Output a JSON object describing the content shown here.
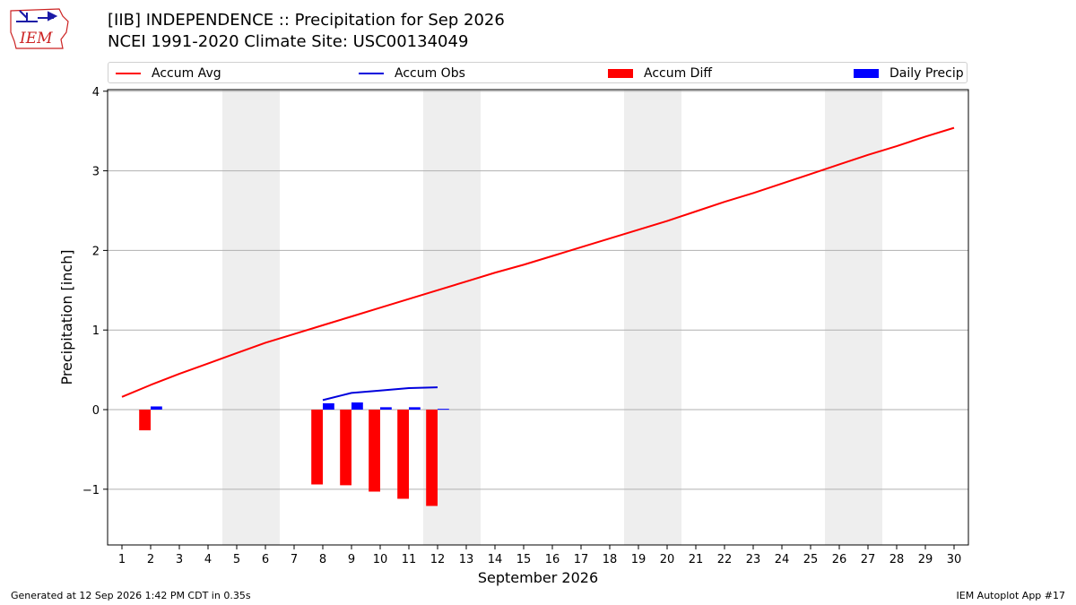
{
  "logo": {
    "text": "IEM",
    "colors": {
      "primary": "#cc2222",
      "icon": "#1a1aa6"
    }
  },
  "title_line1": "[IIB] INDEPENDENCE :: Precipitation for Sep 2026",
  "title_line2": "NCEI 1991-2020 Climate Site: USC00134049",
  "legend": [
    {
      "label": "Accum Avg",
      "kind": "line",
      "color": "#ff0000"
    },
    {
      "label": "Accum Obs",
      "kind": "line",
      "color": "#0000dd"
    },
    {
      "label": "Accum Diff",
      "kind": "bar",
      "color": "#ff0000"
    },
    {
      "label": "Daily Precip",
      "kind": "bar",
      "color": "#0000ff"
    }
  ],
  "chart_data": {
    "type": "bar",
    "xlabel": "September 2026",
    "ylabel": "Precipitation [inch]",
    "x": [
      1,
      2,
      3,
      4,
      5,
      6,
      7,
      8,
      9,
      10,
      11,
      12,
      13,
      14,
      15,
      16,
      17,
      18,
      19,
      20,
      21,
      22,
      23,
      24,
      25,
      26,
      27,
      28,
      29,
      30
    ],
    "x_tick_labels": [
      "1",
      "2",
      "3",
      "4",
      "5",
      "6",
      "7",
      "8",
      "9",
      "10",
      "11",
      "12",
      "13",
      "14",
      "15",
      "16",
      "17",
      "18",
      "19",
      "20",
      "21",
      "22",
      "23",
      "24",
      "25",
      "26",
      "27",
      "28",
      "29",
      "30"
    ],
    "xlim": [
      0.5,
      30.5
    ],
    "ylim": [
      -1.7,
      4.02
    ],
    "y_ticks": [
      -1,
      0,
      1,
      2,
      3,
      4
    ],
    "y_tick_labels": [
      "−1",
      "0",
      "1",
      "2",
      "3",
      "4"
    ],
    "grid": "horizontal",
    "weekend_shading": [
      [
        4.5,
        6.5
      ],
      [
        11.5,
        13.5
      ],
      [
        18.5,
        20.5
      ],
      [
        25.5,
        27.5
      ]
    ],
    "series": [
      {
        "name": "Accum Avg",
        "type": "line",
        "color": "#ff0000",
        "x": [
          1,
          2,
          3,
          4,
          5,
          6,
          7,
          8,
          9,
          10,
          11,
          12,
          13,
          14,
          15,
          16,
          17,
          18,
          19,
          20,
          21,
          22,
          23,
          24,
          25,
          26,
          27,
          28,
          29,
          30
        ],
        "values": [
          0.16,
          0.31,
          0.45,
          0.58,
          0.71,
          0.84,
          0.95,
          1.06,
          1.17,
          1.28,
          1.39,
          1.5,
          1.61,
          1.72,
          1.82,
          1.93,
          2.04,
          2.15,
          2.26,
          2.37,
          2.49,
          2.61,
          2.72,
          2.84,
          2.96,
          3.08,
          3.2,
          3.31,
          3.43,
          3.54
        ]
      },
      {
        "name": "Accum Obs",
        "type": "line",
        "color": "#0000dd",
        "x": [
          8,
          9,
          10,
          11,
          12
        ],
        "values": [
          0.12,
          0.21,
          0.24,
          0.27,
          0.28
        ]
      },
      {
        "name": "Accum Diff",
        "type": "bar",
        "color": "#ff0000",
        "x": [
          2,
          8,
          9,
          10,
          11,
          12
        ],
        "values": [
          -0.26,
          -0.94,
          -0.95,
          -1.03,
          -1.12,
          -1.21
        ]
      },
      {
        "name": "Daily Precip",
        "type": "bar",
        "color": "#0000ff",
        "x": [
          2,
          8,
          9,
          10,
          11,
          12
        ],
        "values": [
          0.04,
          0.08,
          0.09,
          0.03,
          0.03,
          0.01
        ]
      }
    ]
  },
  "footer_left": "Generated at 12 Sep 2026 1:42 PM CDT in 0.35s",
  "footer_right": "IEM Autoplot App #17"
}
